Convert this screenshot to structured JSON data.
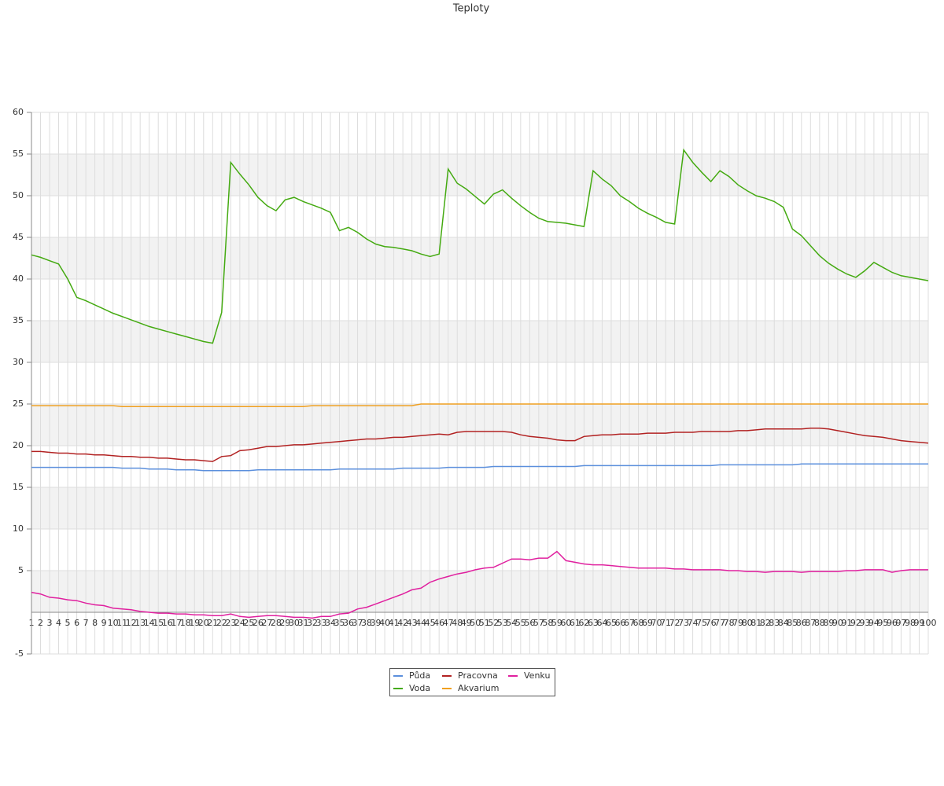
{
  "chart_data": {
    "type": "line",
    "title": "Teploty",
    "x": [
      1,
      2,
      3,
      4,
      5,
      6,
      7,
      8,
      9,
      10,
      11,
      12,
      13,
      14,
      15,
      16,
      17,
      18,
      19,
      20,
      21,
      22,
      23,
      24,
      25,
      26,
      27,
      28,
      29,
      30,
      31,
      32,
      33,
      34,
      35,
      36,
      37,
      38,
      39,
      40,
      41,
      42,
      43,
      44,
      45,
      46,
      47,
      48,
      49,
      50,
      51,
      52,
      53,
      54,
      55,
      56,
      57,
      58,
      59,
      60,
      61,
      62,
      63,
      64,
      65,
      66,
      67,
      68,
      69,
      70,
      71,
      72,
      73,
      74,
      75,
      76,
      77,
      78,
      79,
      80,
      81,
      82,
      83,
      84,
      85,
      86,
      87,
      88,
      89,
      90,
      91,
      92,
      93,
      94,
      95,
      96,
      97,
      98,
      99,
      100
    ],
    "xlim": [
      1,
      100
    ],
    "ylim": [
      -5,
      60
    ],
    "yticks": [
      -5,
      5,
      10,
      15,
      20,
      25,
      30,
      35,
      40,
      45,
      50,
      55,
      60
    ],
    "grid": true,
    "legend": "bottom",
    "series": [
      {
        "name": "Půda",
        "color": "#5b8fdc",
        "values": [
          17.4,
          17.4,
          17.4,
          17.4,
          17.4,
          17.4,
          17.4,
          17.4,
          17.4,
          17.4,
          17.3,
          17.3,
          17.3,
          17.2,
          17.2,
          17.2,
          17.1,
          17.1,
          17.1,
          17.0,
          17.0,
          17.0,
          17.0,
          17.0,
          17.0,
          17.1,
          17.1,
          17.1,
          17.1,
          17.1,
          17.1,
          17.1,
          17.1,
          17.1,
          17.2,
          17.2,
          17.2,
          17.2,
          17.2,
          17.2,
          17.2,
          17.3,
          17.3,
          17.3,
          17.3,
          17.3,
          17.4,
          17.4,
          17.4,
          17.4,
          17.4,
          17.5,
          17.5,
          17.5,
          17.5,
          17.5,
          17.5,
          17.5,
          17.5,
          17.5,
          17.5,
          17.6,
          17.6,
          17.6,
          17.6,
          17.6,
          17.6,
          17.6,
          17.6,
          17.6,
          17.6,
          17.6,
          17.6,
          17.6,
          17.6,
          17.6,
          17.7,
          17.7,
          17.7,
          17.7,
          17.7,
          17.7,
          17.7,
          17.7,
          17.7,
          17.8,
          17.8,
          17.8,
          17.8,
          17.8,
          17.8,
          17.8,
          17.8,
          17.8,
          17.8,
          17.8,
          17.8,
          17.8,
          17.8,
          17.8
        ]
      },
      {
        "name": "Voda",
        "color": "#44aa11",
        "values": [
          42.9,
          42.6,
          42.2,
          41.8,
          40,
          37.8,
          37.4,
          36.9,
          36.4,
          35.9,
          35.5,
          35.1,
          34.7,
          34.3,
          34.0,
          33.7,
          33.4,
          33.1,
          32.8,
          32.5,
          32.3,
          36,
          54,
          52.6,
          51.3,
          49.8,
          48.8,
          48.2,
          49.5,
          49.8,
          49.3,
          48.9,
          48.5,
          48.0,
          45.8,
          46.2,
          45.6,
          44.8,
          44.2,
          43.9,
          43.8,
          43.6,
          43.4,
          43.0,
          42.7,
          43.0,
          53.2,
          51.5,
          50.8,
          49.9,
          49.0,
          50.2,
          50.7,
          49.7,
          48.8,
          48.0,
          47.3,
          46.9,
          46.8,
          46.7,
          46.5,
          46.3,
          53.0,
          52.0,
          51.2,
          50.0,
          49.3,
          48.5,
          47.9,
          47.4,
          46.8,
          46.6,
          55.5,
          54,
          52.8,
          51.7,
          53.0,
          52.3,
          51.3,
          50.6,
          50.0,
          49.7,
          49.3,
          48.6,
          46,
          45.2,
          44.0,
          42.8,
          41.9,
          41.2,
          40.6,
          40.2,
          41,
          42,
          41.4,
          40.8,
          40.4,
          40.2,
          40.0,
          39.8
        ]
      },
      {
        "name": "Pracovna",
        "color": "#b22222",
        "values": [
          19.3,
          19.3,
          19.2,
          19.1,
          19.1,
          19.0,
          19.0,
          18.9,
          18.9,
          18.8,
          18.7,
          18.7,
          18.6,
          18.6,
          18.5,
          18.5,
          18.4,
          18.3,
          18.3,
          18.2,
          18.1,
          18.7,
          18.8,
          19.4,
          19.5,
          19.7,
          19.9,
          19.9,
          20.0,
          20.1,
          20.1,
          20.2,
          20.3,
          20.4,
          20.5,
          20.6,
          20.7,
          20.8,
          20.8,
          20.9,
          21.0,
          21.0,
          21.1,
          21.2,
          21.3,
          21.4,
          21.3,
          21.6,
          21.7,
          21.7,
          21.7,
          21.7,
          21.7,
          21.6,
          21.3,
          21.1,
          21.0,
          20.9,
          20.7,
          20.6,
          20.6,
          21.1,
          21.2,
          21.3,
          21.3,
          21.4,
          21.4,
          21.4,
          21.5,
          21.5,
          21.5,
          21.6,
          21.6,
          21.6,
          21.7,
          21.7,
          21.7,
          21.7,
          21.8,
          21.8,
          21.9,
          22.0,
          22.0,
          22.0,
          22.0,
          22.0,
          22.1,
          22.1,
          22.0,
          21.8,
          21.6,
          21.4,
          21.2,
          21.1,
          21.0,
          20.8,
          20.6,
          20.5,
          20.4,
          20.3
        ]
      },
      {
        "name": "Akvarium",
        "color": "#f0a020",
        "values": [
          24.8,
          24.8,
          24.8,
          24.8,
          24.8,
          24.8,
          24.8,
          24.8,
          24.8,
          24.8,
          24.7,
          24.7,
          24.7,
          24.7,
          24.7,
          24.7,
          24.7,
          24.7,
          24.7,
          24.7,
          24.7,
          24.7,
          24.7,
          24.7,
          24.7,
          24.7,
          24.7,
          24.7,
          24.7,
          24.7,
          24.7,
          24.8,
          24.8,
          24.8,
          24.8,
          24.8,
          24.8,
          24.8,
          24.8,
          24.8,
          24.8,
          24.8,
          24.8,
          25.0,
          25.0,
          25.0,
          25.0,
          25.0,
          25.0,
          25.0,
          25.0,
          25.0,
          25.0,
          25.0,
          25.0,
          25.0,
          25.0,
          25.0,
          25.0,
          25.0,
          25.0,
          25.0,
          25.0,
          25.0,
          25.0,
          25.0,
          25.0,
          25.0,
          25.0,
          25.0,
          25.0,
          25.0,
          25.0,
          25.0,
          25.0,
          25.0,
          25.0,
          25.0,
          25.0,
          25.0,
          25.0,
          25.0,
          25.0,
          25.0,
          25.0,
          25.0,
          25.0,
          25.0,
          25.0,
          25.0,
          25.0,
          25.0,
          25.0,
          25.0,
          25.0,
          25.0,
          25.0,
          25.0,
          25.0,
          25.0
        ]
      },
      {
        "name": "Venku",
        "color": "#e0209f",
        "values": [
          2.4,
          2.2,
          1.8,
          1.7,
          1.5,
          1.4,
          1.1,
          0.9,
          0.8,
          0.5,
          0.4,
          0.3,
          0.1,
          0.0,
          -0.1,
          -0.1,
          -0.2,
          -0.2,
          -0.3,
          -0.3,
          -0.4,
          -0.4,
          -0.2,
          -0.5,
          -0.6,
          -0.5,
          -0.4,
          -0.4,
          -0.5,
          -0.6,
          -0.6,
          -0.7,
          -0.5,
          -0.5,
          -0.2,
          -0.1,
          0.4,
          0.6,
          1.0,
          1.4,
          1.8,
          2.2,
          2.7,
          2.9,
          3.6,
          4.0,
          4.3,
          4.6,
          4.8,
          5.1,
          5.3,
          5.4,
          5.9,
          6.4,
          6.4,
          6.3,
          6.5,
          6.5,
          7.3,
          6.2,
          6.0,
          5.8,
          5.7,
          5.7,
          5.6,
          5.5,
          5.4,
          5.3,
          5.3,
          5.3,
          5.3,
          5.2,
          5.2,
          5.1,
          5.1,
          5.1,
          5.1,
          5.0,
          5.0,
          4.9,
          4.9,
          4.8,
          4.9,
          4.9,
          4.9,
          4.8,
          4.9,
          4.9,
          4.9,
          4.9,
          5.0,
          5.0,
          5.1,
          5.1,
          5.1,
          4.8,
          5.0,
          5.1,
          5.1,
          5.1
        ]
      }
    ]
  }
}
